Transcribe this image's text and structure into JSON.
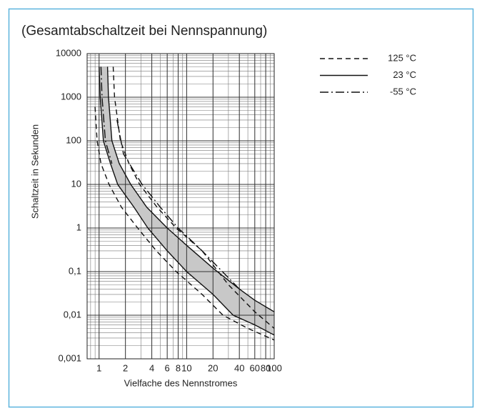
{
  "chart_data": {
    "type": "line",
    "title": "(Gesamtabschaltzeit bei Nennspannung)",
    "x_label": "Vielfache des Nennstromes",
    "y_label": "Schaltzeit in Sekunden",
    "log_x": true,
    "log_y": true,
    "grid": true,
    "minor_grid": true,
    "band": true,
    "legend": "top-right",
    "xlim": [
      0.73,
      100
    ],
    "ylim": [
      0.001,
      10000
    ],
    "xticks": [
      1,
      2,
      4,
      6,
      8,
      10,
      20,
      40,
      60,
      80,
      100
    ],
    "yticks": [
      10000,
      1000,
      100,
      10,
      1,
      {
        "value": 0.1,
        "label": "0,1"
      },
      {
        "value": 0.01,
        "label": "0,01"
      },
      {
        "value": 0.001,
        "label": "0,001"
      }
    ],
    "series": [
      {
        "name": "125 °C",
        "dash": "dashed",
        "color": "#111",
        "curves": [
          {
            "x": [
              0.9,
              0.95,
              1.05,
              1.3,
              1.8,
              2.76,
              4.5,
              7.6,
              15,
              26,
              50,
              100
            ],
            "y": [
              600,
              100,
              30,
              10,
              3,
              1,
              0.3,
              0.1,
              0.03,
              0.01,
              0.005,
              0.0027
            ]
          },
          {
            "x": [
              1.45,
              1.5,
              1.75,
              2.2,
              2.9,
              4.6,
              7.6,
              15,
              30,
              60,
              100
            ],
            "y": [
              5000,
              1000,
              100,
              30,
              10,
              3,
              1,
              0.3,
              0.05,
              0.012,
              0.005
            ]
          }
        ]
      },
      {
        "name": "23 °C",
        "dash": "solid",
        "color": "#111",
        "curves": [
          {
            "x": [
              1.0,
              1.03,
              1.12,
              1.35,
              1.63,
              2.5,
              3.6,
              6,
              10,
              20,
              34,
              60,
              100
            ],
            "y": [
              5000,
              1000,
              100,
              30,
              10,
              3,
              1,
              0.3,
              0.1,
              0.03,
              0.01,
              0.006,
              0.0035
            ]
          },
          {
            "x": [
              1.25,
              1.28,
              1.4,
              1.7,
              2.3,
              3.5,
              6,
              10,
              20,
              40,
              60,
              100
            ],
            "y": [
              5000,
              1000,
              100,
              30,
              10,
              3,
              1,
              0.4,
              0.12,
              0.04,
              0.022,
              0.012
            ]
          }
        ]
      },
      {
        "name": "-55 °C",
        "dash": "dashdot",
        "color": "#111",
        "curves": [
          {
            "x": [
              1.05,
              1.08,
              1.18,
              1.4
            ],
            "y": [
              5000,
              1000,
              100,
              30
            ]
          },
          {
            "x": [
              1.6,
              1.9,
              3.1,
              5,
              8,
              15,
              40
            ],
            "y": [
              300,
              50,
              10,
              3,
              1,
              0.3,
              0.04
            ]
          }
        ]
      }
    ]
  }
}
